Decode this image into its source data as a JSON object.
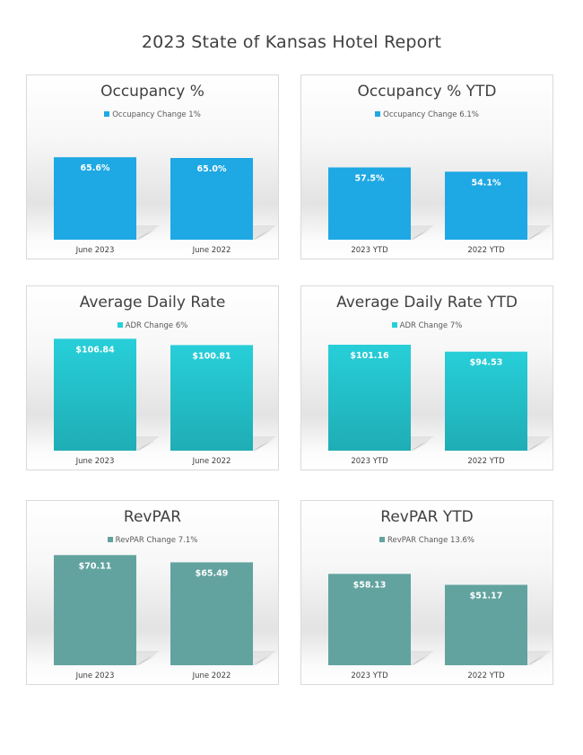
{
  "report": {
    "title": "2023 State of Kansas Hotel Report"
  },
  "chart_data": [
    {
      "type": "bar",
      "title": "Occupancy %",
      "categories": [
        "June 2023",
        "June 2022"
      ],
      "values": [
        65.6,
        65.0
      ],
      "data_labels": [
        "65.6%",
        "65.0%"
      ],
      "legend": "Occupancy Change 1%",
      "legend_position": "top",
      "ylim": [
        0,
        100
      ],
      "color": "#1ea8e4",
      "color_bottom": "#1ea8e4",
      "grid": false
    },
    {
      "type": "bar",
      "title": "Occupancy % YTD",
      "categories": [
        "2023 YTD",
        "2022 YTD"
      ],
      "values": [
        57.5,
        54.1
      ],
      "data_labels": [
        "57.5%",
        "54.1%"
      ],
      "legend": "Occupancy Change 6.1%",
      "legend_position": "top",
      "ylim": [
        0,
        100
      ],
      "color": "#1ea8e4",
      "color_bottom": "#1ea8e4",
      "grid": false
    },
    {
      "type": "bar",
      "title": "Average Daily Rate",
      "categories": [
        "June 2023",
        "June 2022"
      ],
      "values": [
        106.84,
        100.81
      ],
      "data_labels": [
        "$106.84",
        "$100.81"
      ],
      "legend": "ADR Change 6%",
      "legend_position": "top",
      "ylim": [
        0,
        120
      ],
      "color": "#27cfd9",
      "color_bottom": "#1fadb5",
      "grid": false
    },
    {
      "type": "bar",
      "title": "Average Daily Rate YTD",
      "categories": [
        "2023 YTD",
        "2022 YTD"
      ],
      "values": [
        101.16,
        94.53
      ],
      "data_labels": [
        "$101.16",
        "$94.53"
      ],
      "legend": "ADR Change 7%",
      "legend_position": "top",
      "ylim": [
        0,
        120
      ],
      "color": "#27cfd9",
      "color_bottom": "#1fadb5",
      "grid": false
    },
    {
      "type": "bar",
      "title": "RevPAR",
      "categories": [
        "June 2023",
        "June 2022"
      ],
      "values": [
        70.11,
        65.49
      ],
      "data_labels": [
        "$70.11",
        "$65.49"
      ],
      "legend": "RevPAR Change 7.1%",
      "legend_position": "top",
      "ylim": [
        0,
        80
      ],
      "color": "#62a39f",
      "color_bottom": "#62a39f",
      "grid": false
    },
    {
      "type": "bar",
      "title": "RevPAR YTD",
      "categories": [
        "2023 YTD",
        "2022 YTD"
      ],
      "values": [
        58.13,
        51.17
      ],
      "data_labels": [
        "$58.13",
        "$51.17"
      ],
      "legend": "RevPAR Change 13.6%",
      "legend_position": "top",
      "ylim": [
        0,
        80
      ],
      "color": "#62a39f",
      "color_bottom": "#62a39f",
      "grid": false
    }
  ]
}
